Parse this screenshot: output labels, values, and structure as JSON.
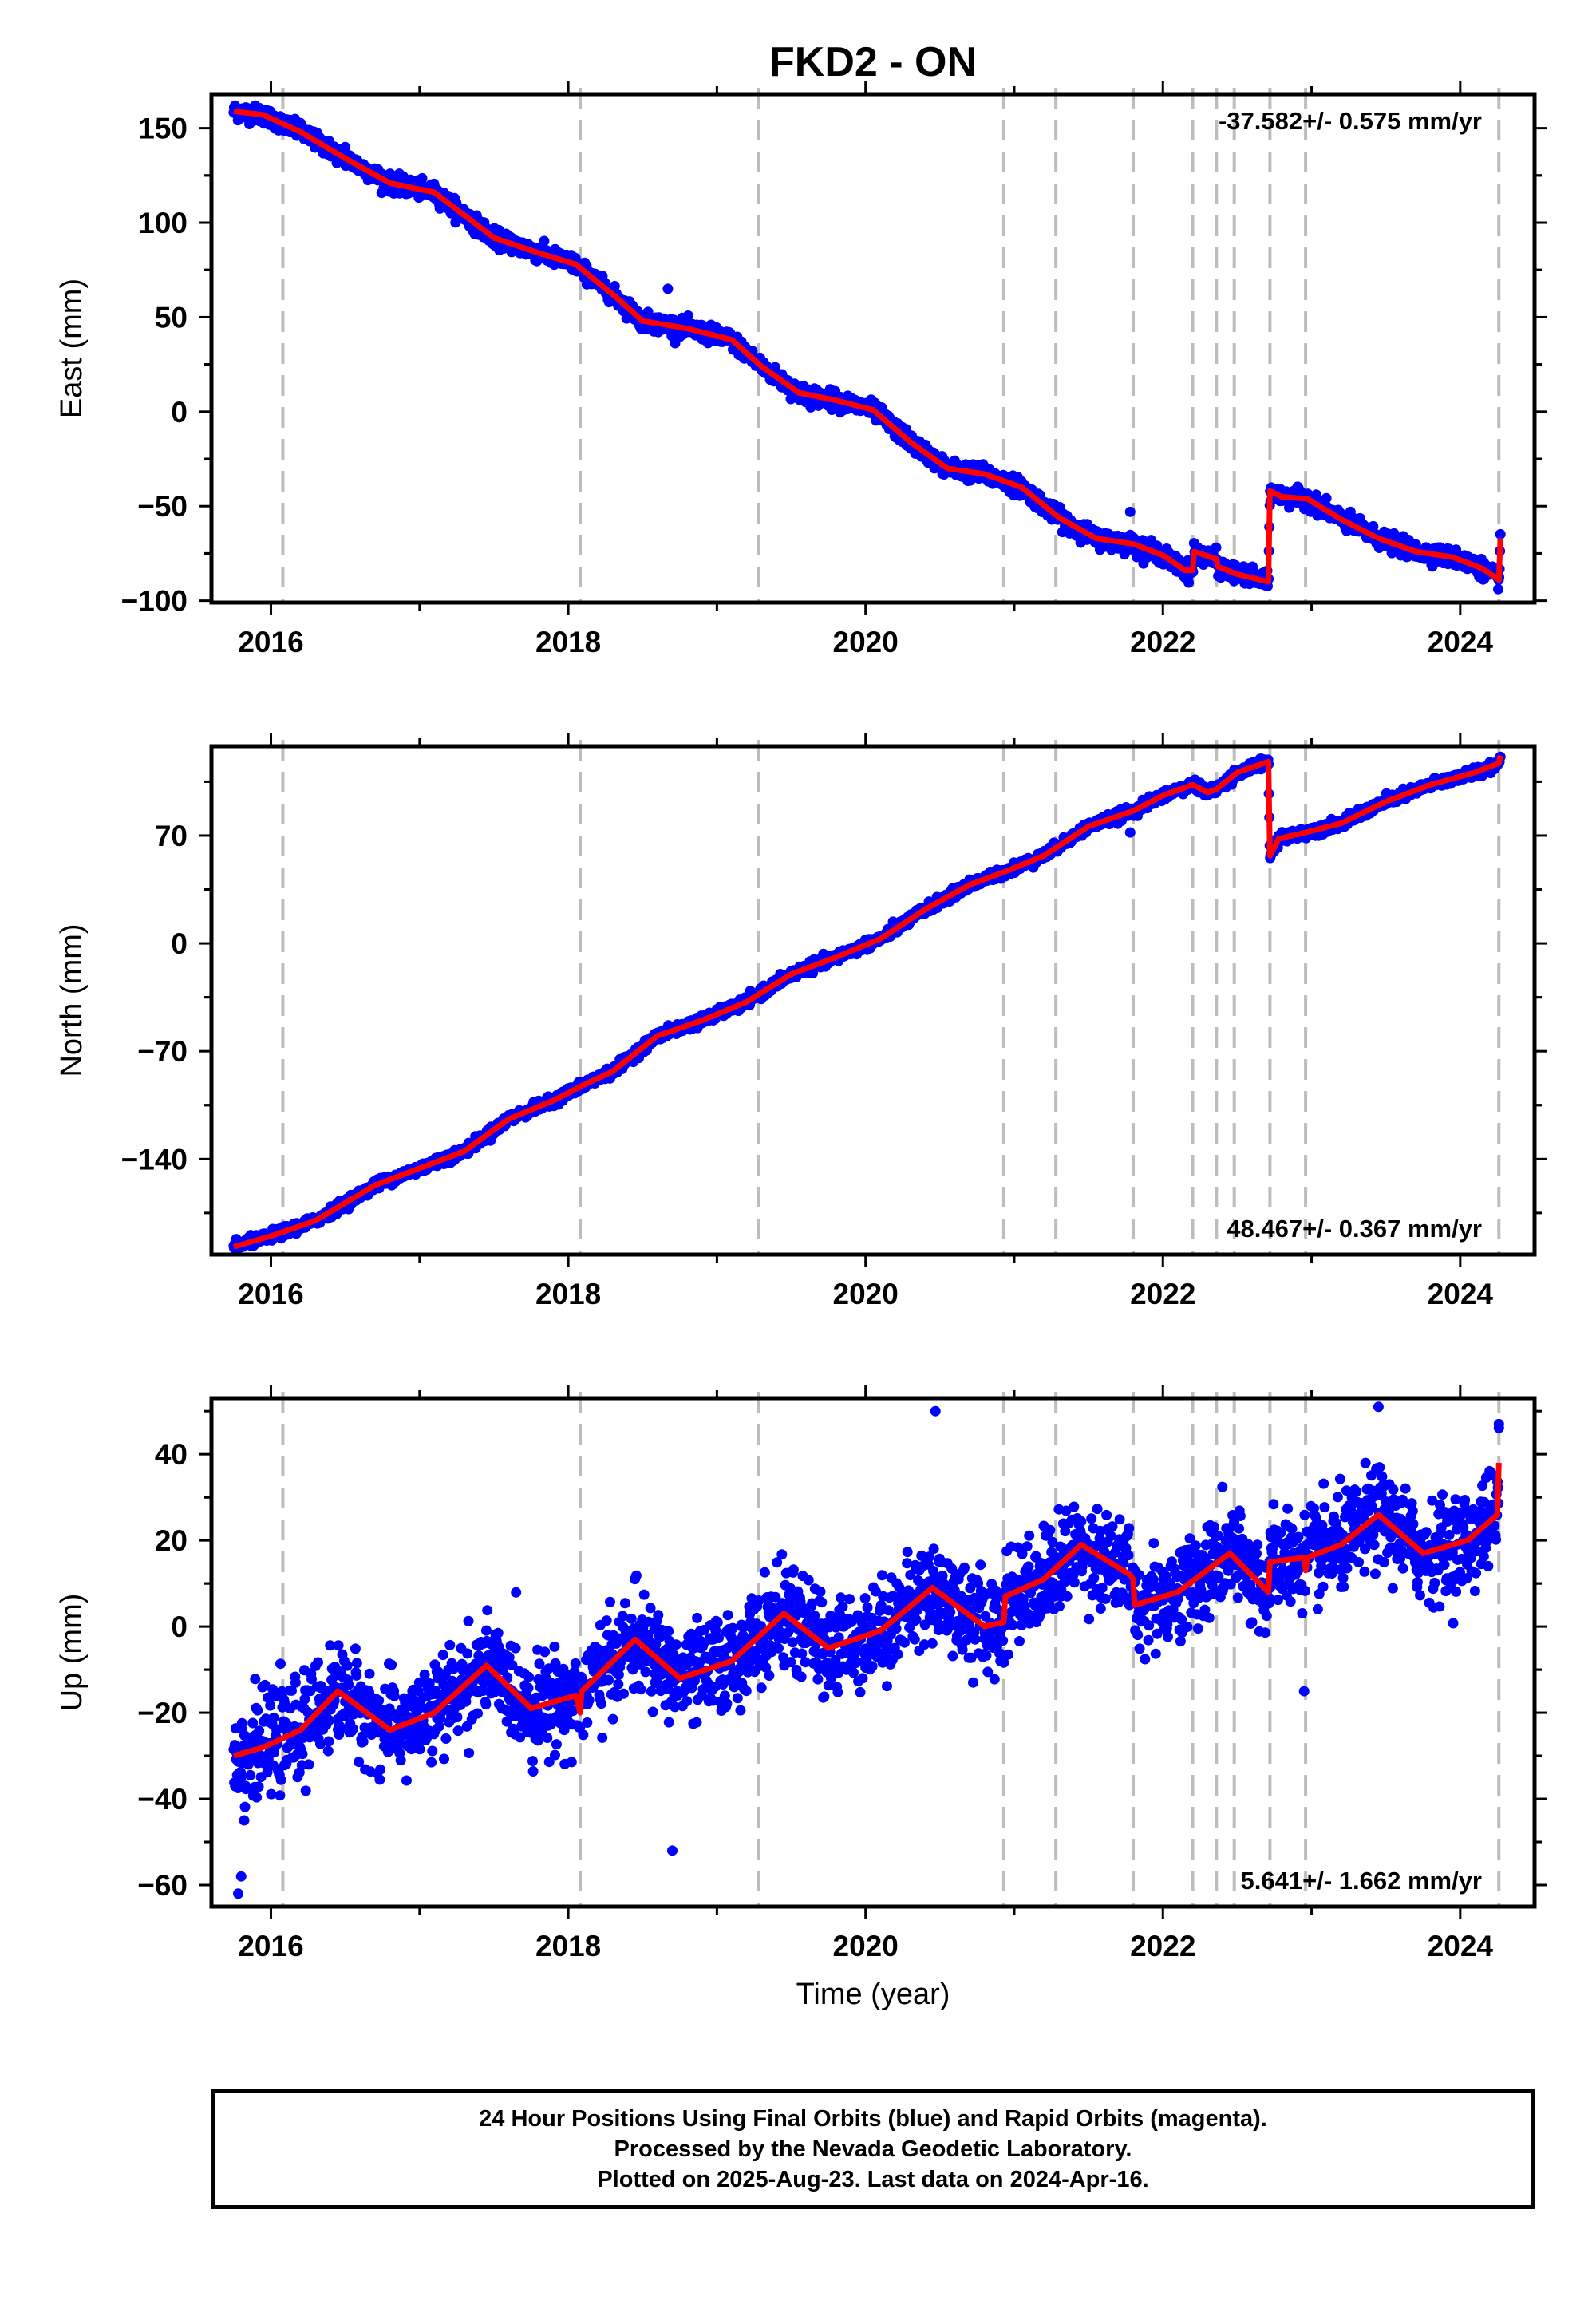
{
  "title": "FKD2 - ON",
  "colors": {
    "final_orbits": "#0000ff",
    "model": "#ff0000",
    "event_lines": "#bdbdbd",
    "frame": "#000000"
  },
  "footer": {
    "line1": "24 Hour Positions Using Final Orbits (blue) and Rapid Orbits (magenta).",
    "line2": "Processed by the Nevada Geodetic Laboratory.",
    "line3": "Plotted on 2025-Aug-23. Last data on 2024-Apr-16."
  },
  "chart_data": [
    {
      "type": "scatter",
      "component": "east",
      "ylabel": "East (mm)",
      "xlabel": "",
      "xlim": [
        2015.6,
        2024.5
      ],
      "ylim": [
        -101,
        168
      ],
      "xticks": [
        2016,
        2018,
        2020,
        2022,
        2024
      ],
      "yticks": [
        -100,
        -50,
        0,
        50,
        100,
        150
      ],
      "ytick_labels": [
        "−100",
        "−50",
        "0",
        "50",
        "100",
        "150"
      ],
      "rate": "-37.582+/- 0.575 mm/yr",
      "rate_position": "top-right",
      "event_lines": [
        2016.08,
        2018.08,
        2019.28,
        2020.93,
        2021.28,
        2021.8,
        2022.2,
        2022.36,
        2022.48,
        2022.72,
        2022.96,
        2024.26
      ],
      "model_points": [
        [
          2015.75,
          159
        ],
        [
          2015.95,
          157
        ],
        [
          2016.2,
          148
        ],
        [
          2016.5,
          134
        ],
        [
          2016.8,
          121
        ],
        [
          2017.1,
          116
        ],
        [
          2017.3,
          104
        ],
        [
          2017.5,
          92
        ],
        [
          2017.8,
          84
        ],
        [
          2018.05,
          78
        ],
        [
          2018.3,
          62
        ],
        [
          2018.5,
          48
        ],
        [
          2018.8,
          44
        ],
        [
          2019.1,
          38
        ],
        [
          2019.3,
          24
        ],
        [
          2019.55,
          10
        ],
        [
          2019.8,
          6
        ],
        [
          2020.05,
          1
        ],
        [
          2020.3,
          -16
        ],
        [
          2020.55,
          -30
        ],
        [
          2020.8,
          -33
        ],
        [
          2021.05,
          -40
        ],
        [
          2021.3,
          -56
        ],
        [
          2021.55,
          -67
        ],
        [
          2021.8,
          -70
        ],
        [
          2022.0,
          -76
        ],
        [
          2022.15,
          -84
        ],
        [
          2022.2,
          -84
        ],
        [
          2022.21,
          -74
        ],
        [
          2022.36,
          -78
        ],
        [
          2022.37,
          -82
        ],
        [
          2022.5,
          -86
        ],
        [
          2022.71,
          -90
        ],
        [
          2022.72,
          -42
        ],
        [
          2022.8,
          -45
        ],
        [
          2022.95,
          -46
        ],
        [
          2022.97,
          -46
        ],
        [
          2023.2,
          -57
        ],
        [
          2023.45,
          -67
        ],
        [
          2023.7,
          -74
        ],
        [
          2023.95,
          -77
        ],
        [
          2024.15,
          -83
        ],
        [
          2024.26,
          -89
        ],
        [
          2024.27,
          -67
        ]
      ],
      "points": {
        "count": 3000,
        "noise_mm": 2.2,
        "outliers": [
          [
            2018.67,
            65
          ],
          [
            2021.78,
            -53
          ],
          [
            2016.5,
            140
          ]
        ]
      }
    },
    {
      "type": "scatter",
      "component": "north",
      "ylabel": "North (mm)",
      "xlabel": "",
      "xlim": [
        2015.6,
        2024.5
      ],
      "ylim": [
        -202,
        128
      ],
      "xticks": [
        2016,
        2018,
        2020,
        2022,
        2024
      ],
      "yticks": [
        -140,
        -70,
        0,
        70
      ],
      "ytick_labels": [
        "−140",
        "−70",
        "0",
        "70"
      ],
      "rate": "48.467+/- 0.367 mm/yr",
      "rate_position": "bottom-right",
      "event_lines": [
        2016.08,
        2018.08,
        2019.28,
        2020.93,
        2021.28,
        2021.8,
        2022.2,
        2022.36,
        2022.48,
        2022.72,
        2022.96,
        2024.26
      ],
      "model_points": [
        [
          2015.75,
          -197
        ],
        [
          2016.0,
          -190
        ],
        [
          2016.3,
          -180
        ],
        [
          2016.7,
          -157
        ],
        [
          2017.0,
          -146
        ],
        [
          2017.3,
          -135
        ],
        [
          2017.6,
          -114
        ],
        [
          2017.9,
          -102
        ],
        [
          2018.1,
          -92
        ],
        [
          2018.3,
          -83
        ],
        [
          2018.6,
          -60
        ],
        [
          2018.9,
          -50
        ],
        [
          2019.2,
          -38
        ],
        [
          2019.5,
          -20
        ],
        [
          2019.8,
          -9
        ],
        [
          2020.1,
          3
        ],
        [
          2020.4,
          22
        ],
        [
          2020.7,
          38
        ],
        [
          2020.95,
          47
        ],
        [
          2021.2,
          57
        ],
        [
          2021.5,
          76
        ],
        [
          2021.8,
          86
        ],
        [
          2022.0,
          96
        ],
        [
          2022.2,
          103
        ],
        [
          2022.3,
          98
        ],
        [
          2022.36,
          100
        ],
        [
          2022.5,
          111
        ],
        [
          2022.71,
          118
        ],
        [
          2022.72,
          57
        ],
        [
          2022.78,
          68
        ],
        [
          2022.96,
          72
        ],
        [
          2023.2,
          78
        ],
        [
          2023.5,
          92
        ],
        [
          2023.8,
          103
        ],
        [
          2024.1,
          111
        ],
        [
          2024.26,
          117
        ],
        [
          2024.27,
          122
        ]
      ],
      "points": {
        "count": 3000,
        "noise_mm": 1.6,
        "outliers": [
          [
            2021.78,
            72
          ],
          [
            2022.75,
            60
          ]
        ]
      }
    },
    {
      "type": "scatter",
      "component": "up",
      "ylabel": "Up (mm)",
      "xlabel": "Time (year)",
      "xlim": [
        2015.6,
        2024.5
      ],
      "ylim": [
        -65,
        53
      ],
      "xticks": [
        2016,
        2018,
        2020,
        2022,
        2024
      ],
      "yticks": [
        -60,
        -40,
        -20,
        0,
        20,
        40
      ],
      "ytick_labels": [
        "−60",
        "−40",
        "−20",
        "0",
        "20",
        "40"
      ],
      "rate": "5.641+/- 1.662 mm/yr",
      "rate_position": "bottom-right",
      "event_lines": [
        2016.08,
        2018.08,
        2019.28,
        2020.93,
        2021.28,
        2021.8,
        2022.2,
        2022.36,
        2022.48,
        2022.72,
        2022.96,
        2024.26
      ],
      "model_points": [
        [
          2015.75,
          -30
        ],
        [
          2015.95,
          -28
        ],
        [
          2016.2,
          -24
        ],
        [
          2016.45,
          -15
        ],
        [
          2016.8,
          -24
        ],
        [
          2017.1,
          -20
        ],
        [
          2017.45,
          -9
        ],
        [
          2017.75,
          -19
        ],
        [
          2018.05,
          -16
        ],
        [
          2018.08,
          -20
        ],
        [
          2018.09,
          -15
        ],
        [
          2018.45,
          -3
        ],
        [
          2018.75,
          -12
        ],
        [
          2019.1,
          -8
        ],
        [
          2019.45,
          3
        ],
        [
          2019.75,
          -5
        ],
        [
          2020.1,
          -1
        ],
        [
          2020.45,
          9
        ],
        [
          2020.8,
          0
        ],
        [
          2020.93,
          1
        ],
        [
          2020.94,
          7
        ],
        [
          2021.2,
          11
        ],
        [
          2021.45,
          19
        ],
        [
          2021.78,
          12
        ],
        [
          2021.8,
          11
        ],
        [
          2021.81,
          5
        ],
        [
          2022.1,
          8
        ],
        [
          2022.45,
          17
        ],
        [
          2022.71,
          8
        ],
        [
          2022.72,
          15
        ],
        [
          2022.95,
          16
        ],
        [
          2022.96,
          13
        ],
        [
          2022.97,
          16
        ],
        [
          2023.2,
          19
        ],
        [
          2023.45,
          26
        ],
        [
          2023.75,
          17
        ],
        [
          2024.05,
          20
        ],
        [
          2024.25,
          26
        ],
        [
          2024.26,
          38
        ]
      ],
      "points": {
        "count": 2600,
        "noise_mm": 5.5,
        "outliers": [
          [
            2015.78,
            -62
          ],
          [
            2015.8,
            -58
          ],
          [
            2015.82,
            -45
          ],
          [
            2018.7,
            -52
          ],
          [
            2020.47,
            50
          ],
          [
            2023.45,
            51
          ],
          [
            2024.26,
            47
          ],
          [
            2022.95,
            -15
          ]
        ]
      }
    }
  ]
}
